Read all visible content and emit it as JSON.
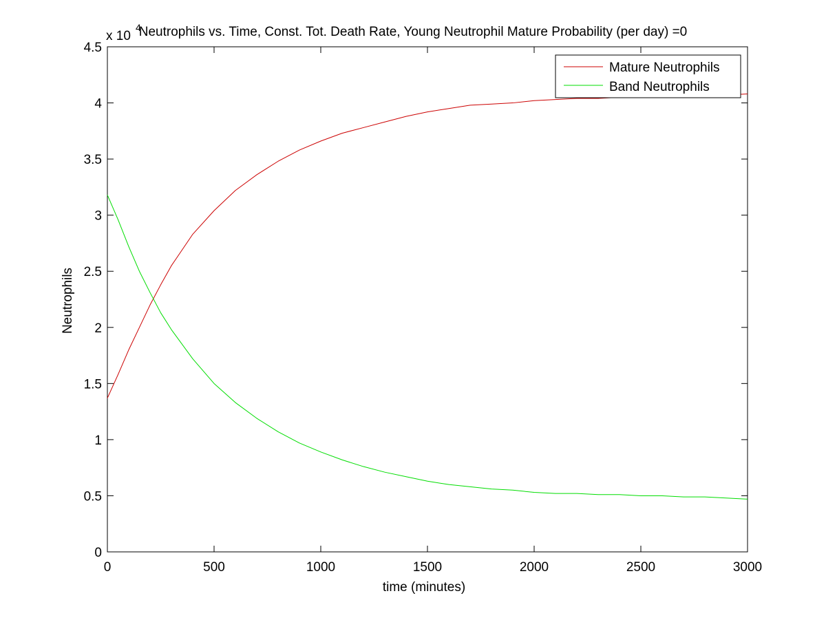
{
  "chart_data": {
    "type": "line",
    "title": "Neutrophils vs. Time, Const. Tot. Death Rate, Young Neutrophil Mature Probability (per day) =0",
    "xlabel": "time (minutes)",
    "ylabel": "Neutrophils",
    "exponent_label": "x 10",
    "exponent_power": "4",
    "xlim": [
      0,
      3000
    ],
    "ylim": [
      0,
      4.5
    ],
    "xticks": [
      0,
      500,
      1000,
      1500,
      2000,
      2500,
      3000
    ],
    "yticks": [
      0,
      0.5,
      1,
      1.5,
      2,
      2.5,
      3,
      3.5,
      4,
      4.5
    ],
    "xtick_labels": [
      "0",
      "500",
      "1000",
      "1500",
      "2000",
      "2500",
      "3000"
    ],
    "ytick_labels": [
      "0",
      "0.5",
      "1",
      "1.5",
      "2",
      "2.5",
      "3",
      "3.5",
      "4",
      "4.5"
    ],
    "legend_position": "top-right",
    "grid": false,
    "series": [
      {
        "name": "Mature Neutrophils",
        "color": "#cc0000",
        "x": [
          0,
          50,
          100,
          150,
          200,
          250,
          300,
          400,
          500,
          600,
          700,
          800,
          900,
          1000,
          1100,
          1200,
          1300,
          1400,
          1500,
          1600,
          1700,
          1800,
          1900,
          2000,
          2100,
          2200,
          2300,
          2400,
          2500,
          2600,
          2700,
          2800,
          2900,
          3000
        ],
        "values": [
          1.37,
          1.58,
          1.8,
          2.0,
          2.2,
          2.38,
          2.55,
          2.83,
          3.04,
          3.22,
          3.36,
          3.48,
          3.58,
          3.66,
          3.73,
          3.78,
          3.83,
          3.88,
          3.92,
          3.95,
          3.98,
          3.99,
          4.0,
          4.02,
          4.03,
          4.04,
          4.04,
          4.05,
          4.06,
          4.06,
          4.07,
          4.07,
          4.07,
          4.08
        ]
      },
      {
        "name": "Band Neutrophils",
        "color": "#00dd00",
        "x": [
          0,
          50,
          100,
          150,
          200,
          250,
          300,
          400,
          500,
          600,
          700,
          800,
          900,
          1000,
          1100,
          1200,
          1300,
          1400,
          1500,
          1600,
          1700,
          1800,
          1900,
          2000,
          2100,
          2200,
          2300,
          2400,
          2500,
          2600,
          2700,
          2800,
          2900,
          3000
        ],
        "values": [
          3.18,
          2.96,
          2.72,
          2.5,
          2.31,
          2.13,
          1.98,
          1.72,
          1.5,
          1.33,
          1.19,
          1.07,
          0.97,
          0.89,
          0.82,
          0.76,
          0.71,
          0.67,
          0.63,
          0.6,
          0.58,
          0.56,
          0.55,
          0.53,
          0.52,
          0.52,
          0.51,
          0.51,
          0.5,
          0.5,
          0.49,
          0.49,
          0.48,
          0.47
        ]
      }
    ]
  }
}
